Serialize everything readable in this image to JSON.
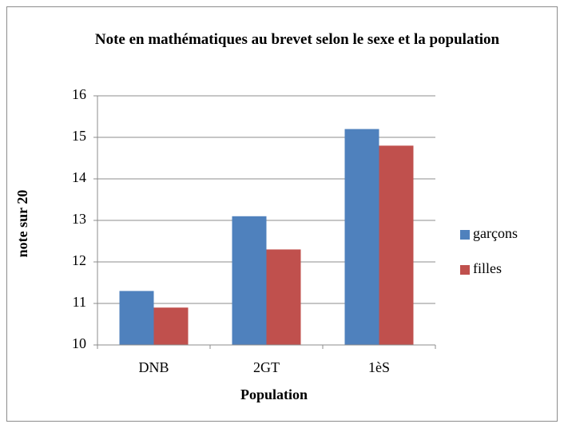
{
  "chart_data": {
    "type": "bar",
    "title": "Note en mathématiques au brevet selon le sexe et la population",
    "x_label": "Population",
    "y_label": "note sur 20",
    "categories": [
      "DNB",
      "2GT",
      "1èS"
    ],
    "series": [
      {
        "name": "garçons",
        "color": "#4f81bd",
        "values": [
          11.3,
          13.1,
          15.2
        ]
      },
      {
        "name": "filles",
        "color": "#c0504d",
        "values": [
          10.9,
          12.3,
          14.8
        ]
      }
    ],
    "ylim": [
      10,
      16
    ],
    "yticks": [
      10,
      11,
      12,
      13,
      14,
      15,
      16
    ],
    "grid": true,
    "legend": "right"
  }
}
